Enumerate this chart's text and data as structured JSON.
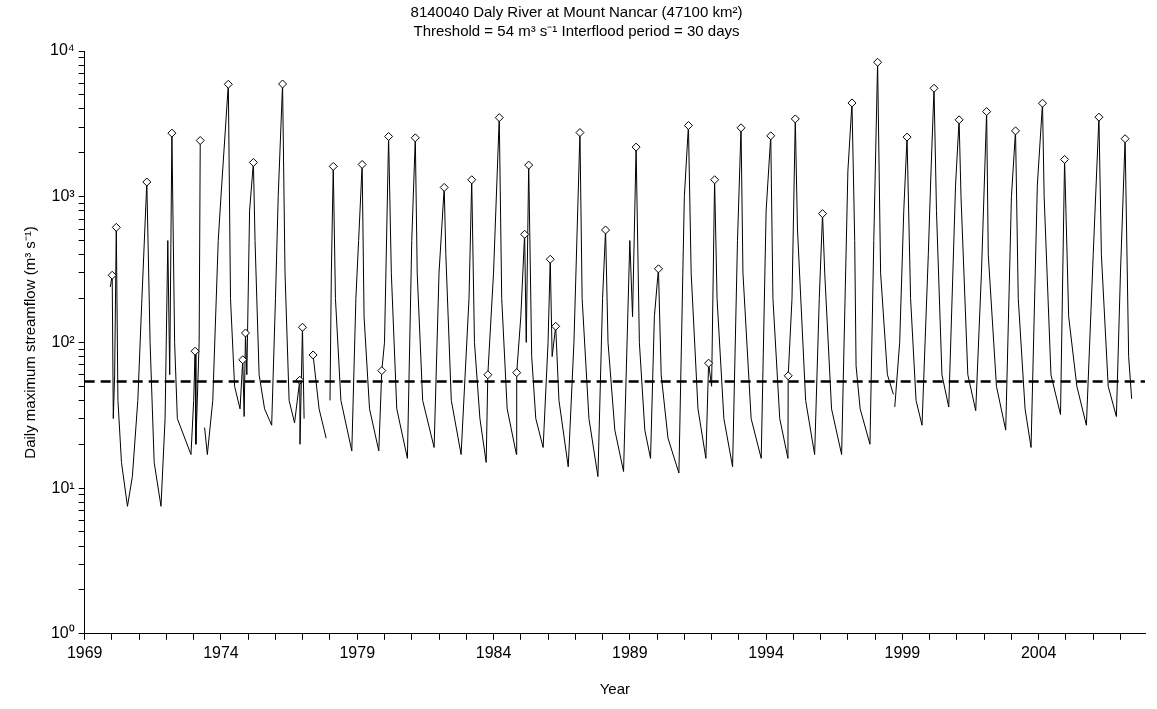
{
  "chart_data": {
    "type": "line",
    "title": "8140040 Daly River at Mount Nancar (47100 km²)",
    "subtitle": "Threshold = 54 m³ s⁻¹ Interflood period = 30 days",
    "xlabel": "Year",
    "ylabel": "Daily maximum streamflow (m³ s⁻¹)",
    "log": "y",
    "xlim": [
      1969,
      2007.9
    ],
    "xticks": [
      1969,
      {
        "value": 1970,
        "label": null
      },
      {
        "value": 1971,
        "label": null
      },
      {
        "value": 1972,
        "label": null
      },
      {
        "value": 1973,
        "label": null
      },
      1974,
      {
        "value": 1975,
        "label": null
      },
      {
        "value": 1976,
        "label": null
      },
      {
        "value": 1977,
        "label": null
      },
      {
        "value": 1978,
        "label": null
      },
      1979,
      {
        "value": 1980,
        "label": null
      },
      {
        "value": 1981,
        "label": null
      },
      {
        "value": 1982,
        "label": null
      },
      {
        "value": 1983,
        "label": null
      },
      1984,
      {
        "value": 1985,
        "label": null
      },
      {
        "value": 1986,
        "label": null
      },
      {
        "value": 1987,
        "label": null
      },
      {
        "value": 1988,
        "label": null
      },
      1989,
      {
        "value": 1990,
        "label": null
      },
      {
        "value": 1991,
        "label": null
      },
      {
        "value": 1992,
        "label": null
      },
      {
        "value": 1993,
        "label": null
      },
      1994,
      {
        "value": 1995,
        "label": null
      },
      {
        "value": 1996,
        "label": null
      },
      {
        "value": 1997,
        "label": null
      },
      {
        "value": 1998,
        "label": null
      },
      1999,
      {
        "value": 2000,
        "label": null
      },
      {
        "value": 2001,
        "label": null
      },
      {
        "value": 2002,
        "label": null
      },
      {
        "value": 2003,
        "label": null
      },
      2004,
      {
        "value": 2005,
        "label": null
      },
      {
        "value": 2006,
        "label": null
      },
      {
        "value": 2007,
        "label": null
      }
    ],
    "ylim": [
      1,
      10000
    ],
    "yticks": [
      {
        "value": 1,
        "label": "10⁰"
      },
      {
        "value": 2,
        "label": null
      },
      {
        "value": 3,
        "label": null
      },
      {
        "value": 4,
        "label": null
      },
      {
        "value": 5,
        "label": null
      },
      {
        "value": 6,
        "label": null
      },
      {
        "value": 7,
        "label": null
      },
      {
        "value": 8,
        "label": null
      },
      {
        "value": 9,
        "label": null
      },
      {
        "value": 10,
        "label": "10¹"
      },
      {
        "value": 20,
        "label": null
      },
      {
        "value": 30,
        "label": null
      },
      {
        "value": 40,
        "label": null
      },
      {
        "value": 50,
        "label": null
      },
      {
        "value": 60,
        "label": null
      },
      {
        "value": 70,
        "label": null
      },
      {
        "value": 80,
        "label": null
      },
      {
        "value": 90,
        "label": null
      },
      {
        "value": 100,
        "label": "10²"
      },
      {
        "value": 200,
        "label": null
      },
      {
        "value": 300,
        "label": null
      },
      {
        "value": 400,
        "label": null
      },
      {
        "value": 500,
        "label": null
      },
      {
        "value": 600,
        "label": null
      },
      {
        "value": 700,
        "label": null
      },
      {
        "value": 800,
        "label": null
      },
      {
        "value": 900,
        "label": null
      },
      {
        "value": 1000,
        "label": "10³"
      },
      {
        "value": 2000,
        "label": null
      },
      {
        "value": 3000,
        "label": null
      },
      {
        "value": 4000,
        "label": null
      },
      {
        "value": 5000,
        "label": null
      },
      {
        "value": 6000,
        "label": null
      },
      {
        "value": 7000,
        "label": null
      },
      {
        "value": 8000,
        "label": null
      },
      {
        "value": 9000,
        "label": null
      },
      {
        "value": 10000,
        "label": "10⁴"
      }
    ],
    "series": [
      {
        "color": "#000000",
        "marker": "none",
        "x": [
          1969.94,
          1970.01,
          1970.05,
          1970.1,
          1970.16,
          1970.22,
          1970.35,
          1970.57,
          1970.75,
          1970.95,
          1971.1,
          1971.28,
          1971.4,
          1971.55,
          1971.8,
          1971.95,
          1972.05,
          1972.12,
          1972.2,
          1972.3,
          1972.4,
          1972.9,
          1973,
          1973.05,
          1973.08,
          1973.2,
          1973.24,
          1973.26,
          1973.4,
          1973.5,
          1973.7,
          1973.9,
          1974,
          1974.27,
          1974.35,
          1974.5,
          1974.7,
          1974.8,
          1974.85,
          1974.9,
          1974.95,
          1975.05,
          1975.19,
          1975.25,
          1975.4,
          1975.6,
          1975.86,
          1976,
          1976.1,
          1976.26,
          1976.35,
          1976.5,
          1976.7,
          1976.89,
          1976.9,
          1976.99,
          1977.05,
          1977.1,
          1977.38,
          1977.6,
          1977.86,
          1977.9,
          1978,
          1978.05,
          1978.12,
          1978.2,
          1978.4,
          1978.8,
          1978.95,
          1979.05,
          1979.18,
          1979.25,
          1979.45,
          1979.79,
          1979.9,
          1980,
          1980.15,
          1980.25,
          1980.45,
          1980.84,
          1981,
          1981.13,
          1981.2,
          1981.4,
          1981.82,
          1982,
          1982.19,
          1982.25,
          1982.45,
          1982.81,
          1983.1,
          1983.2,
          1983.3,
          1983.5,
          1983.73,
          1983.79,
          1984,
          1984.21,
          1984.3,
          1984.5,
          1984.84,
          1984.85,
          1985,
          1985.14,
          1985.2,
          1985.29,
          1985.4,
          1985.55,
          1985.82,
          1986,
          1986.08,
          1986.15,
          1986.28,
          1986.4,
          1986.74,
          1986.95,
          1987.17,
          1987.25,
          1987.5,
          1987.83,
          1988,
          1988.11,
          1988.2,
          1988.45,
          1988.77,
          1989,
          1989.1,
          1989.23,
          1989.35,
          1989.55,
          1989.76,
          1989.9,
          1990.05,
          1990.15,
          1990.4,
          1990.8,
          1991,
          1991.15,
          1991.25,
          1991.5,
          1991.79,
          1991.89,
          1992,
          1992.11,
          1992.2,
          1992.45,
          1992.77,
          1992.95,
          1993.08,
          1993.15,
          1993.45,
          1993.82,
          1994,
          1994.17,
          1994.25,
          1994.5,
          1994.8,
          1994.81,
          1994.95,
          1995.07,
          1995.15,
          1995.45,
          1995.78,
          1995.95,
          1996.07,
          1996.15,
          1996.4,
          1996.77,
          1997,
          1997.15,
          1997.25,
          1997.3,
          1997.45,
          1997.81,
          1997.95,
          1998.09,
          1998.2,
          1998.45,
          1998.67,
          1998.69,
          1998.72,
          1998.9,
          1999.05,
          1999.17,
          1999.3,
          1999.5,
          1999.72,
          1999.95,
          2000.05,
          2000.16,
          2000.25,
          2000.45,
          2000.7,
          2000.95,
          2001.08,
          2001.15,
          2001.4,
          2001.69,
          2001.9,
          2002.09,
          2002.15,
          2002.45,
          2002.79,
          2003,
          2003.15,
          2003.25,
          2003.5,
          2003.72,
          2003.95,
          2004.14,
          2004.2,
          2004.45,
          2004.8,
          2004.95,
          2005.1,
          2005.4,
          2005.75,
          2006,
          2006.21,
          2006.3,
          2006.55,
          2006.85,
          2007,
          2007.17,
          2007.3,
          2007.41
        ],
        "values": [
          240,
          289,
          30,
          60,
          616,
          40,
          15,
          7.5,
          12,
          40,
          200,
          1261,
          100,
          15,
          7.5,
          30,
          500,
          60,
          2730,
          100,
          30,
          17,
          40,
          87,
          20,
          100,
          2430,
          null,
          26,
          17,
          40,
          500,
          1000,
          5910,
          200,
          50,
          35,
          76,
          31,
          116,
          60,
          800,
          1718,
          500,
          60,
          35,
          27,
          200,
          1000,
          5940,
          300,
          40,
          28,
          55,
          20,
          127,
          30,
          null,
          82,
          35,
          22,
          null,
          40,
          300,
          1614,
          200,
          40,
          18,
          200,
          500,
          1664,
          150,
          35,
          18,
          64,
          100,
          2590,
          300,
          35,
          16,
          500,
          2535,
          300,
          40,
          19,
          300,
          1158,
          400,
          40,
          17,
          200,
          1307,
          100,
          30,
          15,
          60,
          300,
          3490,
          200,
          35,
          17,
          62,
          150,
          552,
          100,
          1648,
          80,
          30,
          19,
          100,
          372,
          80,
          129,
          40,
          14,
          100,
          2755,
          200,
          30,
          12,
          200,
          591,
          100,
          25,
          13,
          500,
          150,
          2190,
          100,
          25,
          16,
          150,
          320,
          60,
          22,
          12.7,
          1000,
          3080,
          300,
          35,
          16,
          72,
          50,
          1307,
          200,
          30,
          14,
          500,
          2970,
          300,
          30,
          16,
          800,
          2617,
          200,
          30,
          16,
          59,
          200,
          3420,
          600,
          40,
          17,
          200,
          765,
          300,
          35,
          17,
          1500,
          4400,
          500,
          69,
          35,
          20,
          500,
          8370,
          300,
          60,
          44,
          null,
          36,
          100,
          800,
          2565,
          200,
          40,
          27,
          400,
          1500,
          5550,
          800,
          60,
          36,
          1200,
          3370,
          1000,
          60,
          34,
          300,
          3840,
          400,
          50,
          25,
          1000,
          2830,
          200,
          35,
          19,
          1200,
          4380,
          1000,
          60,
          32,
          1802,
          150,
          50,
          27,
          400,
          3514,
          400,
          50,
          31,
          300,
          2500,
          80,
          41
        ]
      },
      {
        "type": "scatter",
        "color": "#000000",
        "marker": "diamond",
        "x": [
          1970.01,
          1970.16,
          1971.28,
          1972.2,
          1973.05,
          1973.24,
          1974.27,
          1974.8,
          1974.9,
          1975.19,
          1976.26,
          1976.89,
          1976.99,
          1977.38,
          1978.12,
          1979.18,
          1979.9,
          1980.15,
          1981.13,
          1982.19,
          1983.2,
          1983.79,
          1984.21,
          1984.85,
          1985.14,
          1985.29,
          1986.08,
          1986.28,
          1987.17,
          1988.11,
          1989.23,
          1990.05,
          1991.15,
          1991.89,
          1992.11,
          1993.08,
          1994.17,
          1994.81,
          1995.07,
          1996.07,
          1997.15,
          1998.09,
          1999.17,
          2000.16,
          2001.08,
          2002.09,
          2003.15,
          2004.14,
          2004.95,
          2006.21,
          2007.17
        ],
        "values": [
          289,
          616,
          1261,
          2730,
          87,
          2430,
          5910,
          76,
          116,
          1718,
          5940,
          55,
          127,
          82,
          1614,
          1664,
          64,
          2590,
          2535,
          1158,
          1307,
          60,
          3490,
          62,
          552,
          1648,
          372,
          129,
          2755,
          591,
          2190,
          320,
          3080,
          72,
          1307,
          2970,
          2617,
          59,
          3420,
          765,
          4400,
          8370,
          2565,
          5550,
          3370,
          3840,
          2830,
          4380,
          1802,
          3514,
          2500
        ]
      }
    ],
    "ref_lines": [
      {
        "axis": "y",
        "value": 54,
        "color": "#000000",
        "line_style": "dashed"
      }
    ]
  }
}
